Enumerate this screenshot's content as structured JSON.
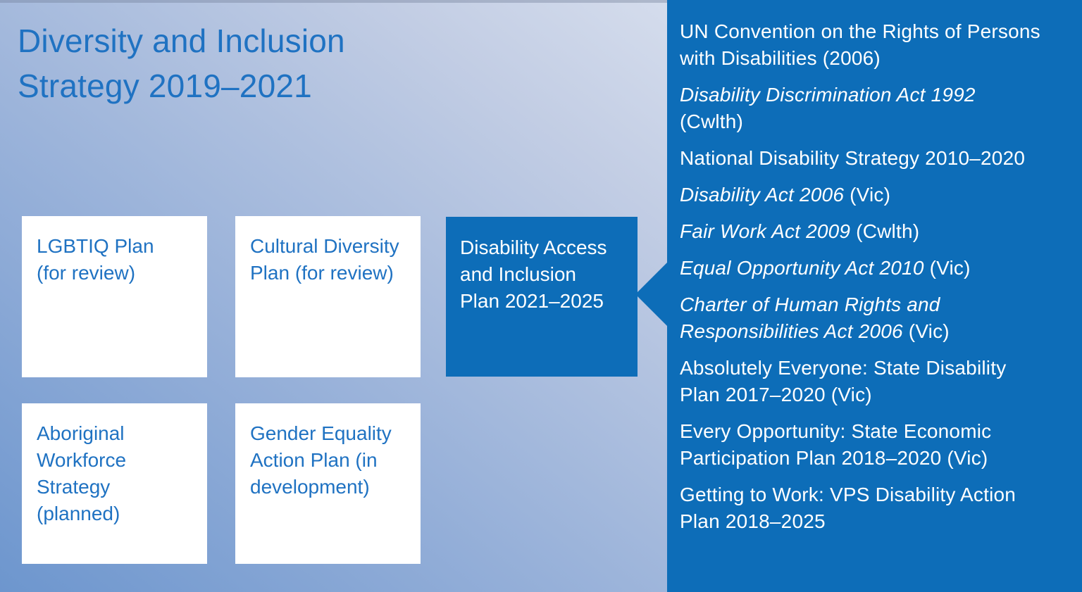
{
  "title": {
    "line1": "Diversity and Inclusion",
    "line2": "Strategy 2019–2021"
  },
  "plans": [
    {
      "label": "LGBTIQ Plan (for review)"
    },
    {
      "label": "Cultural Diversity Plan (for review)"
    },
    {
      "label": "Aboriginal Workforce Strategy (planned)"
    },
    {
      "label": "Gender Equality Action Plan (in development)"
    }
  ],
  "focus_plan": {
    "label": "Disability Access and Inclusion Plan 2021–2025"
  },
  "legislation": [
    {
      "title_italic": "",
      "text": "UN Convention on the Rights of Persons with Disabilities (2006)"
    },
    {
      "title_italic": "Disability Discrimination Act 1992",
      "text": " (Cwlth)"
    },
    {
      "title_italic": "",
      "text": "National Disability Strategy 2010–2020"
    },
    {
      "title_italic": "Disability Act 2006",
      "text": " (Vic)"
    },
    {
      "title_italic": "Fair Work Act 2009",
      "text": " (Cwlth)"
    },
    {
      "title_italic": "Equal Opportunity Act 2010",
      "text": " (Vic)"
    },
    {
      "title_italic": "Charter of Human Rights and Responsibilities Act 2006",
      "text": " (Vic)"
    },
    {
      "title_italic": "",
      "text": "Absolutely Everyone: State Disability Plan 2017–2020 (Vic)"
    },
    {
      "title_italic": "",
      "text": "Every Opportunity: State Economic Participation Plan 2018–2020 (Vic)"
    },
    {
      "title_italic": "",
      "text": "Getting to Work: VPS Disability Action Plan 2018–2025"
    }
  ],
  "colors": {
    "brand_blue": "#0d6db8",
    "text_blue": "#1f72c2",
    "box_white": "#ffffff",
    "panel_text_white": "#ffffff",
    "background_gradient_start": "#6d96ce",
    "background_gradient_end": "#eaeef6"
  }
}
